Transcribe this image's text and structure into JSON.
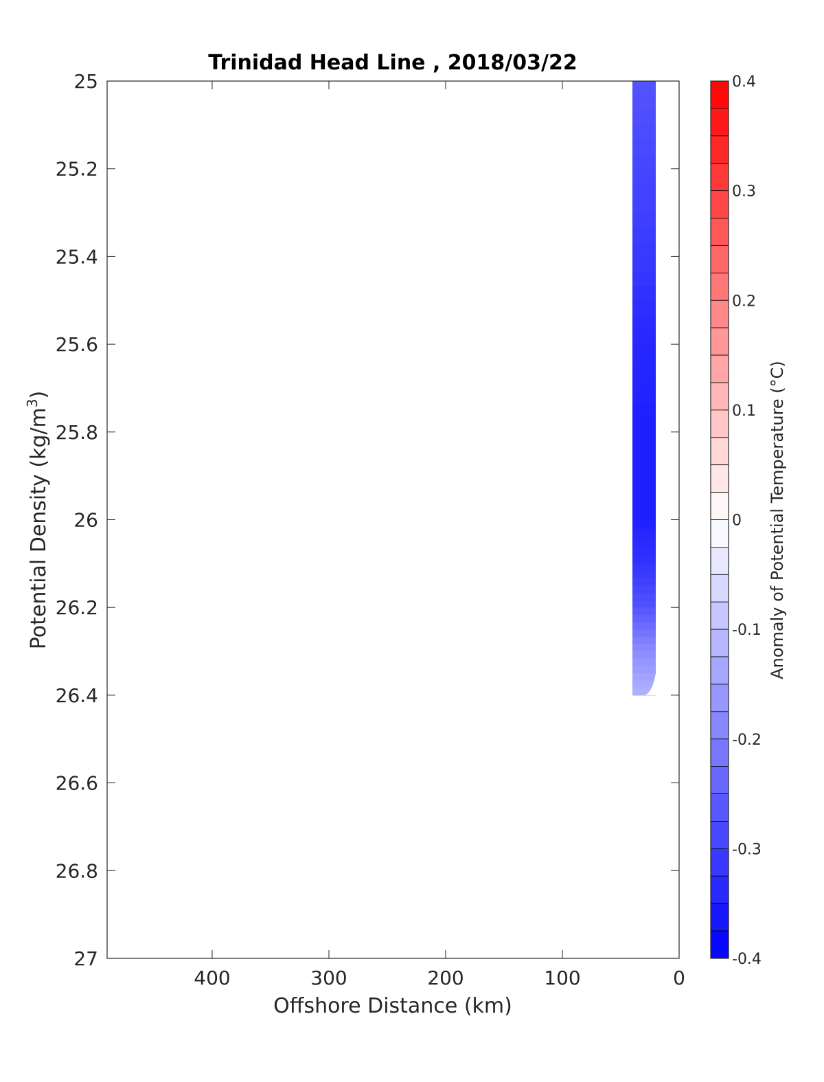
{
  "chart_data": {
    "type": "heatmap",
    "title": "Trinidad Head Line , 2018/03/22",
    "xlabel": "Offshore Distance (km)",
    "ylabel_main": "Potential Density (kg/m",
    "ylabel_sup": "3",
    "ylabel_tail": ")",
    "xlim": [
      490,
      0
    ],
    "ylim": [
      25,
      27
    ],
    "x_reversed": true,
    "y_reversed": true,
    "x_ticks": [
      400,
      300,
      200,
      100,
      0
    ],
    "y_ticks": [
      25,
      25.2,
      25.4,
      25.6,
      25.8,
      26,
      26.2,
      26.4,
      26.6,
      26.8,
      27
    ],
    "colorbar": {
      "label": "Anomaly of Potential Temperature (°C)",
      "range": [
        -0.4,
        0.4
      ],
      "step": 0.025,
      "ticks": [
        0.4,
        0.3,
        0.2,
        0.1,
        0,
        -0.1,
        -0.2,
        -0.3,
        -0.4
      ],
      "colors": {
        "negative": "#0000ff",
        "zero": "#ffffff",
        "positive": "#ff0000"
      }
    },
    "data_region": {
      "x_range": [
        20,
        40
      ],
      "y_range": [
        25,
        26.4
      ],
      "profile": [
        {
          "density": 25.0,
          "anomaly": -0.27
        },
        {
          "density": 25.2,
          "anomaly": -0.29
        },
        {
          "density": 25.4,
          "anomaly": -0.31
        },
        {
          "density": 25.6,
          "anomaly": -0.34
        },
        {
          "density": 25.8,
          "anomaly": -0.35
        },
        {
          "density": 26.0,
          "anomaly": -0.35
        },
        {
          "density": 26.1,
          "anomaly": -0.32
        },
        {
          "density": 26.2,
          "anomaly": -0.27
        },
        {
          "density": 26.3,
          "anomaly": -0.18
        },
        {
          "density": 26.4,
          "anomaly": -0.12
        }
      ]
    }
  }
}
